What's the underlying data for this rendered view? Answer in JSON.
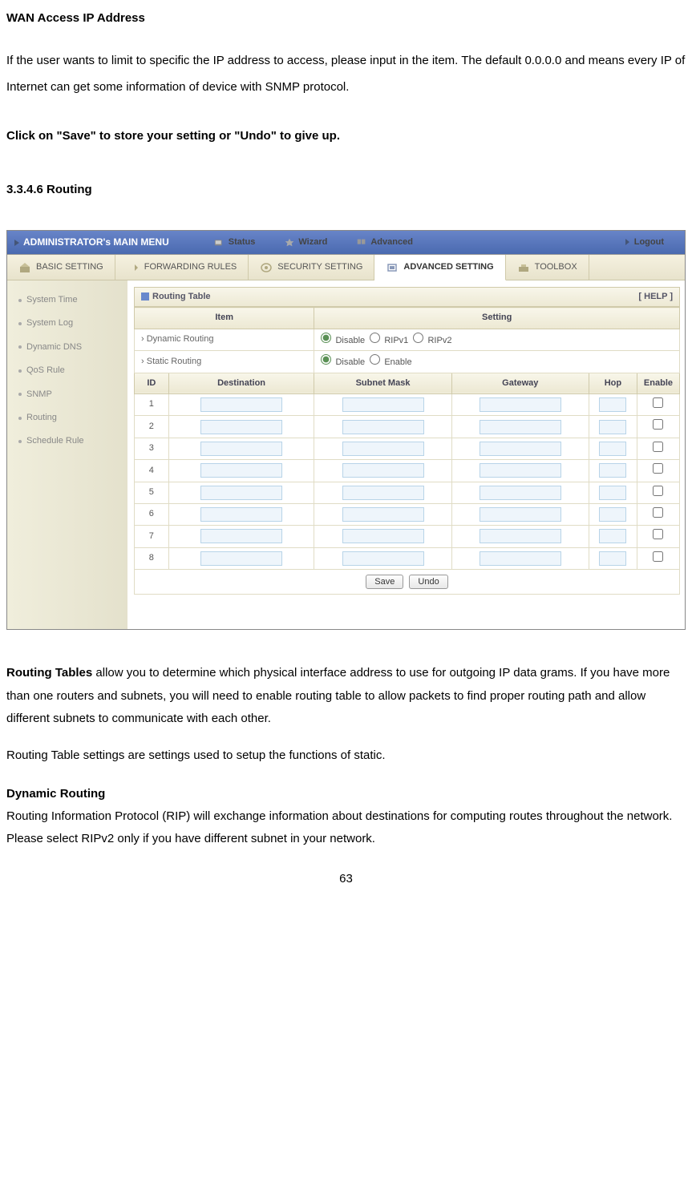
{
  "doc": {
    "wan_heading": "WAN Access IP Address",
    "wan_para": "If the user wants to limit to specific the IP address to access, please input in the item. The default 0.0.0.0 and means every IP of Internet can get some information of device with SNMP protocol.",
    "save_line": "Click on \"Save\" to store your setting or \"Undo\" to give up.",
    "section_num": "3.3.4.6 Routing",
    "routing_para1_lead": "Routing Tables",
    "routing_para1_rest": " allow you to determine which physical interface address to use for outgoing IP data grams. If you have more than one routers and subnets, you will need to enable routing table to allow packets to find proper routing path and allow different subnets to communicate with each other.",
    "routing_para2": "Routing Table settings are settings used to setup the functions of static.",
    "dynamic_heading": "Dynamic Routing",
    "dynamic_para": "Routing Information Protocol (RIP) will exchange information about destinations for computing routes throughout the network. Please select RIPv2 only if you have different subnet in your network.",
    "page_number": "63"
  },
  "ui": {
    "colors": {
      "topbar_start": "#6884c8",
      "topbar_end": "#4a6ab0",
      "tab_bg_start": "#f5f1e0",
      "tab_bg_end": "#e8e3cc",
      "border": "#d0caaa",
      "input_border": "#b8d4e8",
      "input_bg": "#eef5fb"
    },
    "topbar": {
      "title": "ADMINISTRATOR's MAIN MENU",
      "items": [
        {
          "label": "Status"
        },
        {
          "label": "Wizard"
        },
        {
          "label": "Advanced"
        },
        {
          "label": "Logout"
        }
      ]
    },
    "tabs": [
      {
        "label": "BASIC SETTING",
        "active": false
      },
      {
        "label": "FORWARDING RULES",
        "active": false
      },
      {
        "label": "SECURITY SETTING",
        "active": false
      },
      {
        "label": "ADVANCED SETTING",
        "active": true
      },
      {
        "label": "TOOLBOX",
        "active": false
      }
    ],
    "sidebar": [
      "System Time",
      "System Log",
      "Dynamic DNS",
      "QoS Rule",
      "SNMP",
      "Routing",
      "Schedule Rule"
    ],
    "panel_title": "Routing Table",
    "help_link": "[ HELP ]",
    "top_headers": {
      "item": "Item",
      "setting": "Setting"
    },
    "dyn_label": "Dynamic Routing",
    "dyn_options": [
      {
        "label": "Disable",
        "checked": true
      },
      {
        "label": "RIPv1",
        "checked": false
      },
      {
        "label": "RIPv2",
        "checked": false
      }
    ],
    "static_label": "Static Routing",
    "static_options": [
      {
        "label": "Disable",
        "checked": true
      },
      {
        "label": "Enable",
        "checked": false
      }
    ],
    "cols": {
      "id": "ID",
      "dest": "Destination",
      "mask": "Subnet Mask",
      "gw": "Gateway",
      "hop": "Hop",
      "enable": "Enable"
    },
    "row_ids": [
      1,
      2,
      3,
      4,
      5,
      6,
      7,
      8
    ],
    "buttons": {
      "save": "Save",
      "undo": "Undo"
    }
  }
}
